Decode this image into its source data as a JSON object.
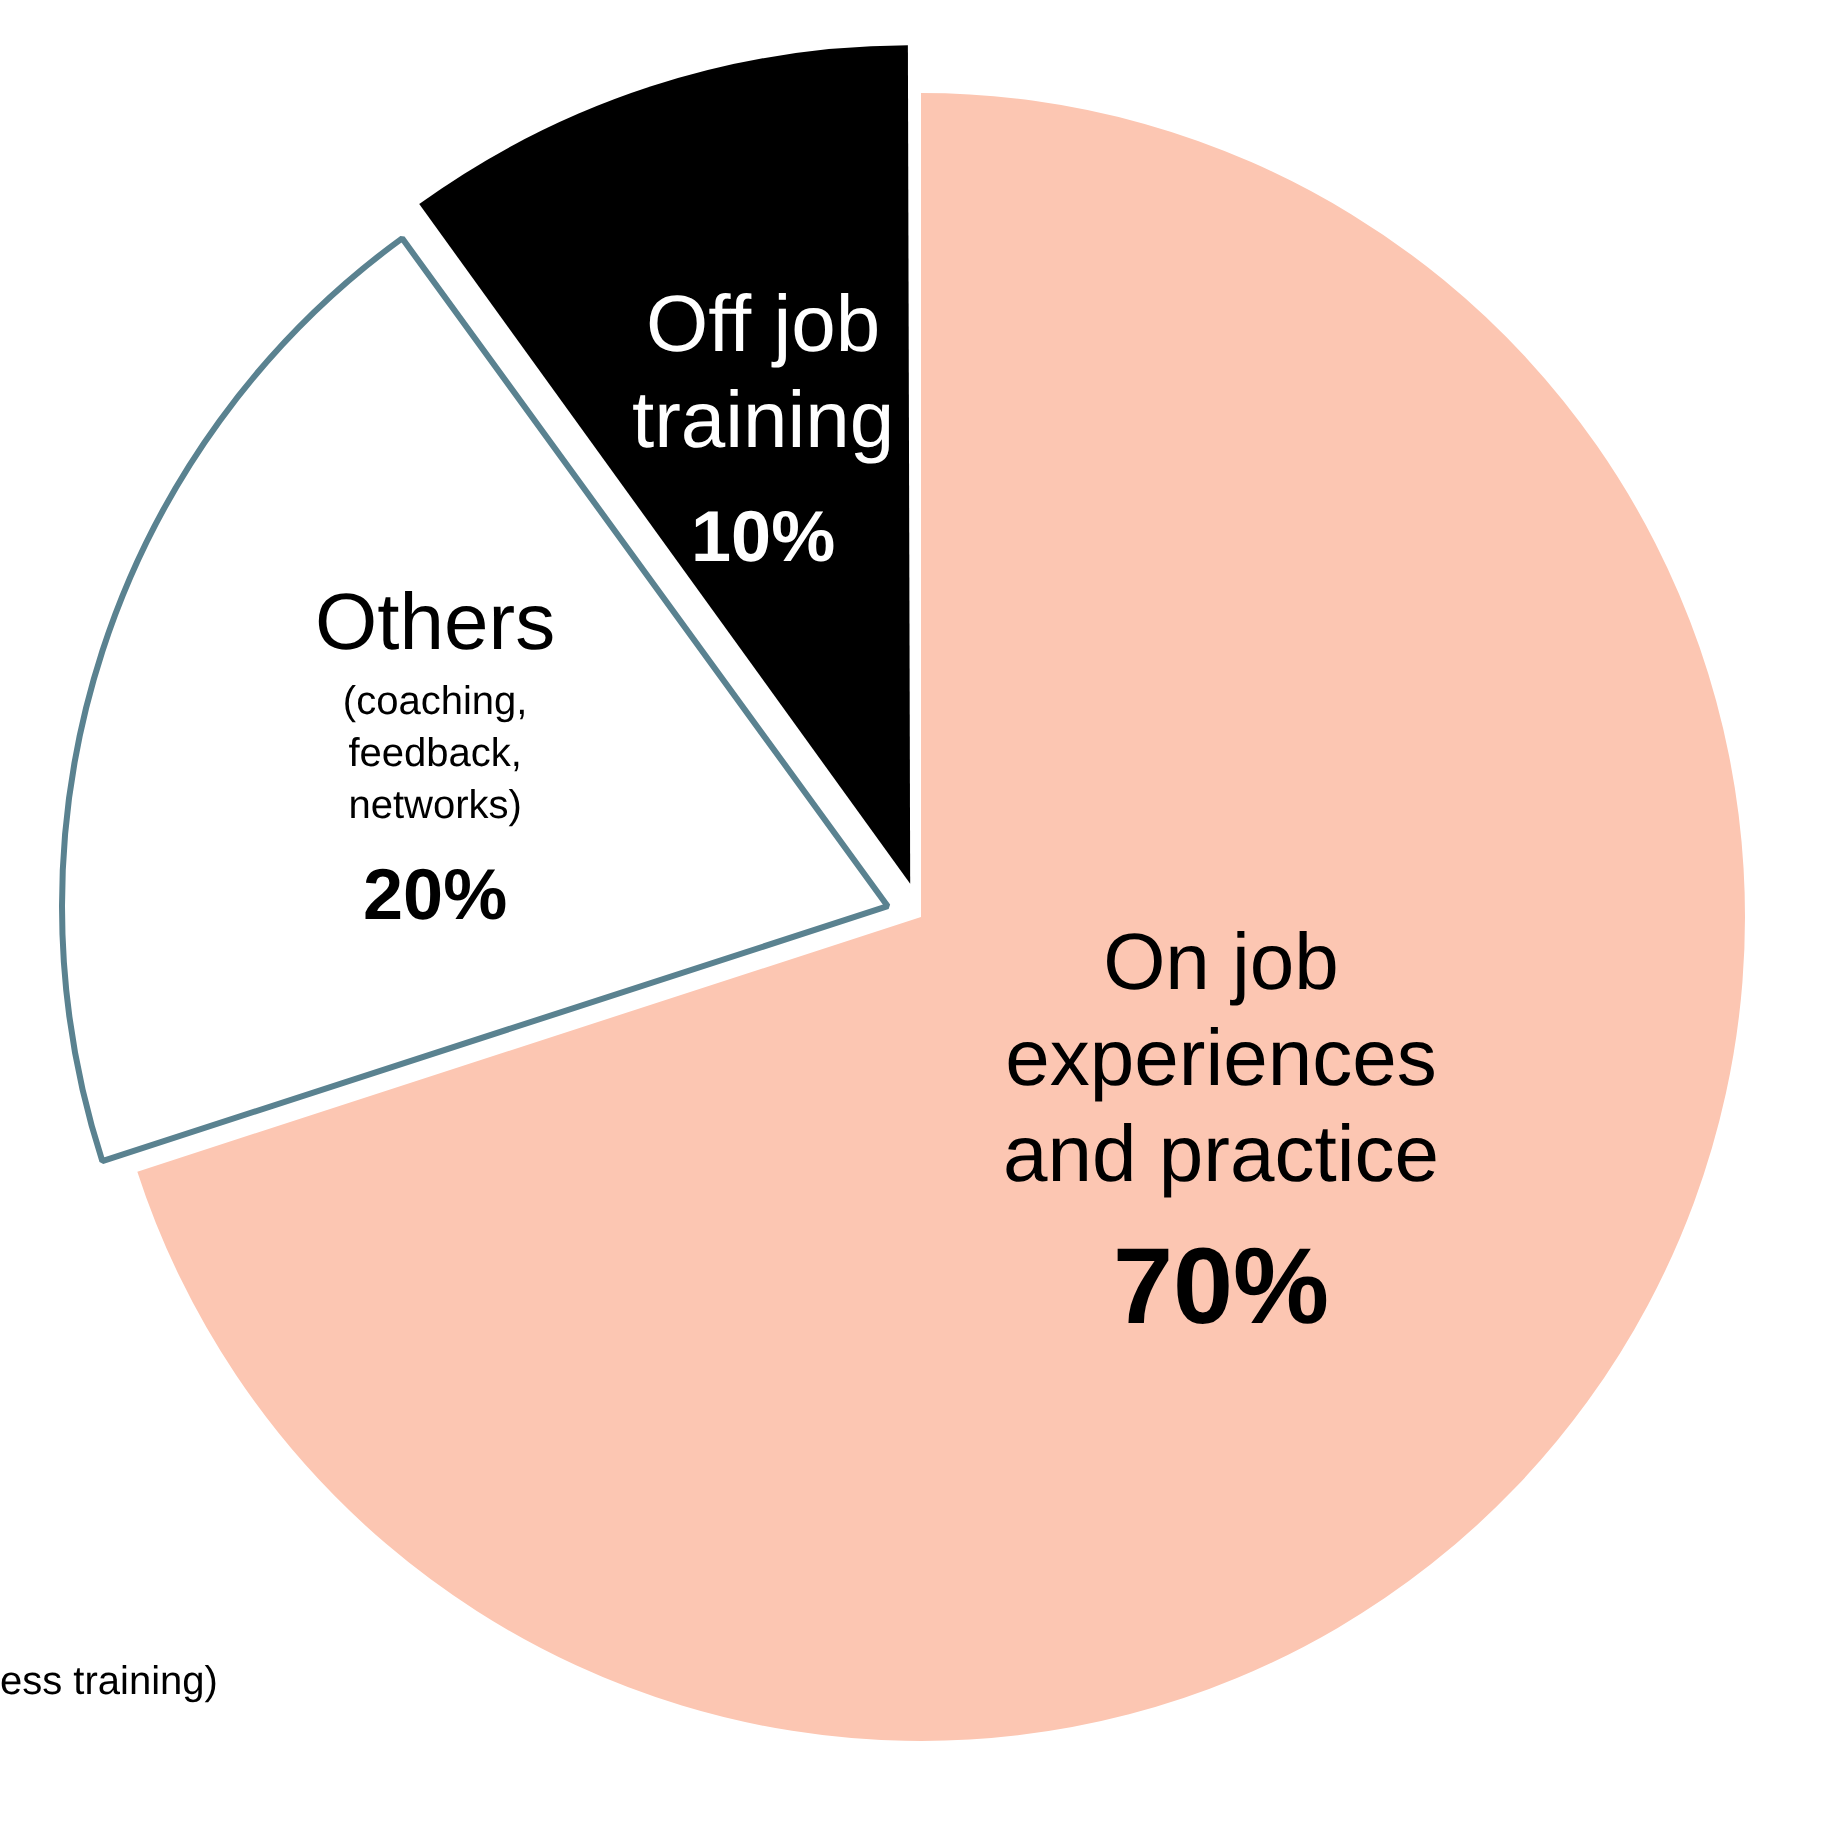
{
  "chart_data": {
    "type": "pie",
    "categories": [
      "On job experiences and practice",
      "Others",
      "Off job training"
    ],
    "values": [
      70,
      20,
      10
    ],
    "colors": [
      "#fcc6b2",
      "#ffffff",
      "#000000"
    ],
    "value_labels": [
      "70%",
      "20%",
      "10%"
    ],
    "annotations": [
      {
        "text": "(coaching, feedback, networks)",
        "x": "Others"
      },
      "ess training)"
    ],
    "legend": false
  }
}
